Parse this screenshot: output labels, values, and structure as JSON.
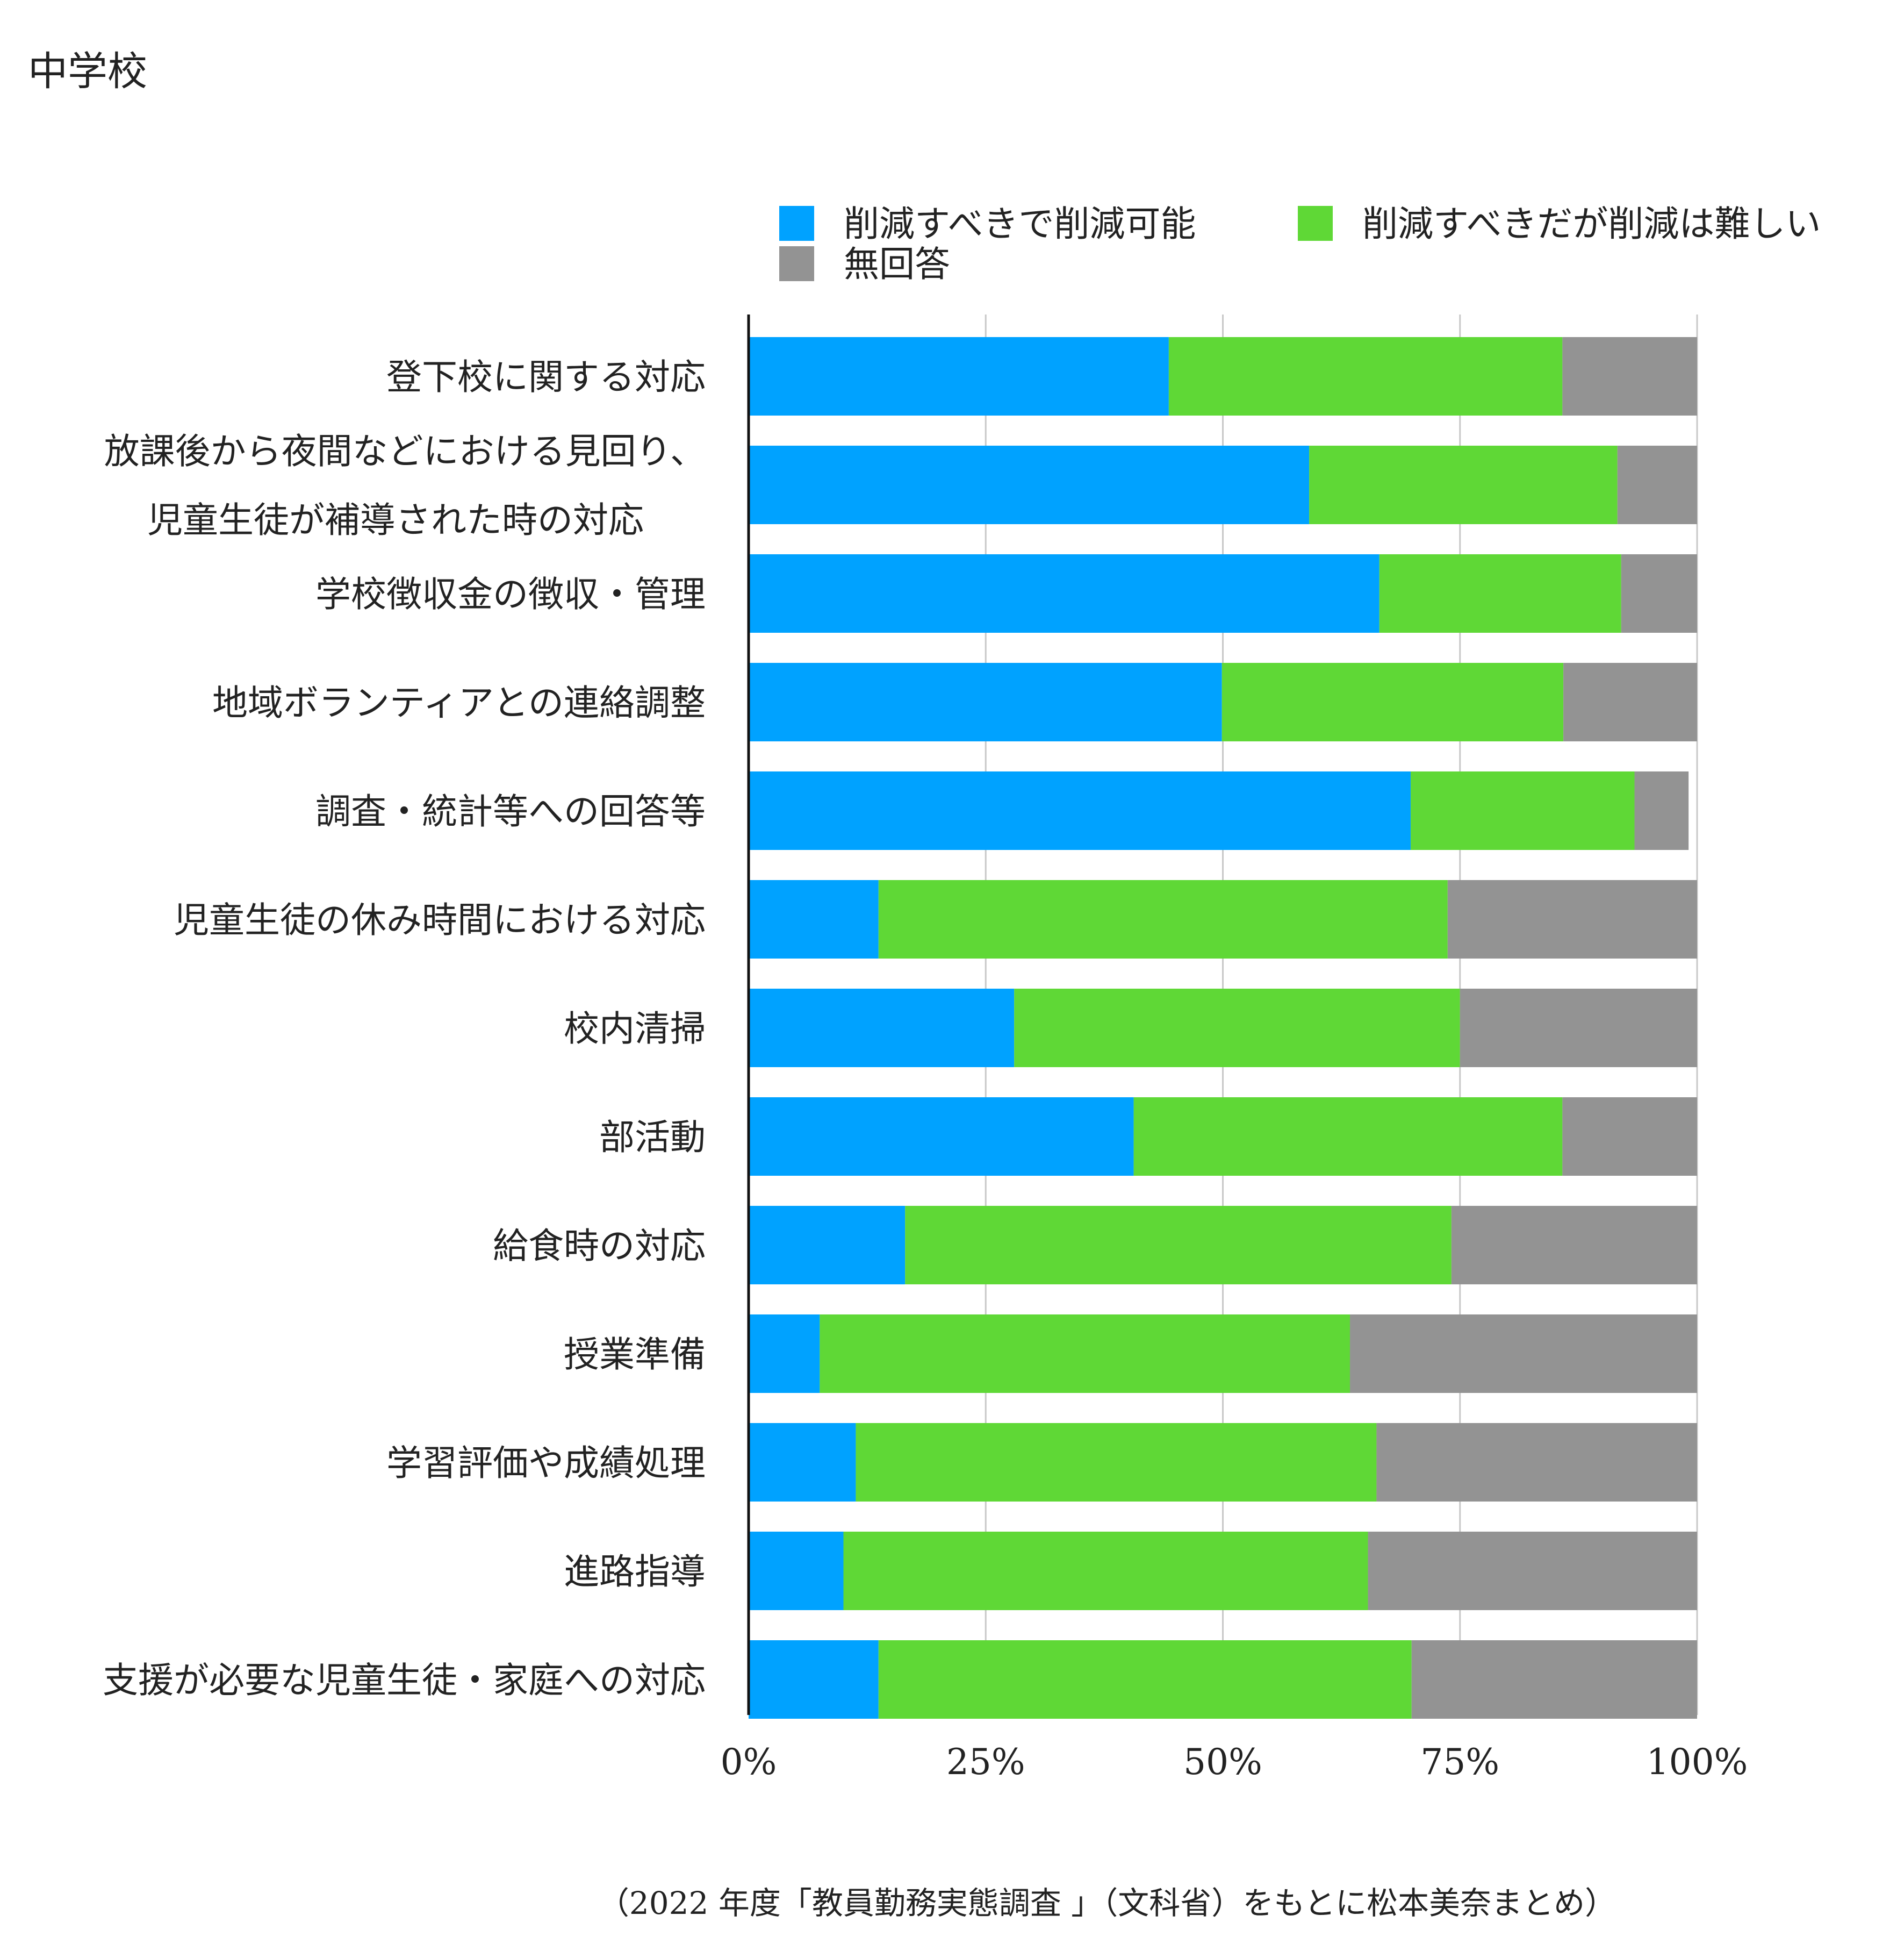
{
  "chart_data": {
    "type": "bar",
    "orientation": "horizontal",
    "stacked": true,
    "title": "中学校",
    "caption": "（2022 年度「教員勤務実態調査 」（文科省）をもとに松本美奈まとめ）",
    "xlim": [
      0,
      100
    ],
    "x_ticks": [
      "0%",
      "25%",
      "50%",
      "75%",
      "100%"
    ],
    "x_tick_values": [
      0,
      25,
      50,
      75,
      100
    ],
    "grid": true,
    "legend_position": "top-right",
    "categories": [
      [
        "登下校に関する対応"
      ],
      [
        "放課後から夜間などにおける見回り、",
        "児童生徒が補導された時の対応"
      ],
      [
        "学校徴収金の徴収・管理"
      ],
      [
        "地域ボランティアとの連絡調整"
      ],
      [
        "調査・統計等への回答等"
      ],
      [
        "児童生徒の休み時間における対応"
      ],
      [
        "校内清掃"
      ],
      [
        "部活動"
      ],
      [
        "給食時の対応"
      ],
      [
        "授業準備"
      ],
      [
        "学習評価や成績処理"
      ],
      [
        "進路指導"
      ],
      [
        "支援が必要な児童生徒・家庭への対応"
      ]
    ],
    "series": [
      {
        "name": "削減すべきで削減可能",
        "color": "#00a2ff",
        "values": [
          44.3,
          59.1,
          66.5,
          49.9,
          69.8,
          13.7,
          28.0,
          40.6,
          16.5,
          7.5,
          11.3,
          10.0,
          13.7
        ]
      },
      {
        "name": "削減すべきだが削減は難しい",
        "color": "#5fd836",
        "values": [
          41.5,
          32.5,
          25.5,
          36.0,
          23.6,
          60.0,
          47.0,
          45.2,
          57.6,
          55.9,
          54.9,
          55.3,
          56.2
        ]
      },
      {
        "name": "無回答",
        "color": "#939393",
        "values": [
          14.2,
          8.4,
          8.0,
          14.1,
          5.7,
          26.3,
          25.0,
          14.2,
          25.9,
          36.6,
          33.8,
          34.7,
          30.1
        ]
      }
    ]
  }
}
